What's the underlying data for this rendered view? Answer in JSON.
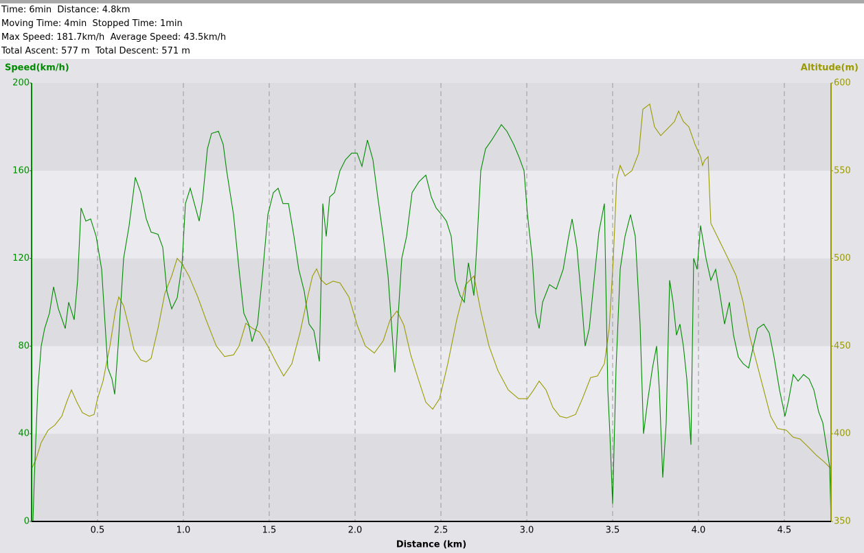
{
  "header": {
    "lines": [
      "Time: 6min  Distance: 4.8km",
      "Moving Time: 4min  Stopped Time: 1min",
      "Max Speed: 181.7km/h  Average Speed: 43.5km/h",
      "Total Ascent: 577 m  Total Descent: 571 m"
    ]
  },
  "chart_data": {
    "type": "line",
    "x_label": "Distance (km)",
    "y_label": "Speed(km/h)",
    "y2_label": "Altitude(m)",
    "xlim": [
      0.116,
      4.772
    ],
    "xticks": [
      0.5,
      {
        "value": 1,
        "label": "1.0"
      },
      1.5,
      {
        "value": 2,
        "label": "2.0"
      },
      2.5,
      {
        "value": 3,
        "label": "3.0"
      },
      3.5,
      {
        "value": 4,
        "label": "4.0"
      },
      4.5
    ],
    "ylim": [
      0,
      200
    ],
    "yticks": [
      0,
      40,
      80,
      120,
      160,
      200
    ],
    "y2lim": [
      350,
      600
    ],
    "y2ticks": [
      350,
      400,
      450,
      500,
      550,
      600
    ],
    "grid": true,
    "series": [
      {
        "name": "Speed",
        "color": "#008a00",
        "axis": "y",
        "x": [
          0.116,
          0.124,
          0.132,
          0.152,
          0.172,
          0.192,
          0.22,
          0.244,
          0.272,
          0.312,
          0.332,
          0.364,
          0.384,
          0.404,
          0.432,
          0.46,
          0.492,
          0.524,
          0.54,
          0.56,
          0.584,
          0.6,
          0.62,
          0.652,
          0.684,
          0.72,
          0.752,
          0.784,
          0.812,
          0.852,
          0.88,
          0.904,
          0.932,
          0.964,
          0.992,
          1.012,
          1.04,
          1.064,
          1.092,
          1.112,
          1.14,
          1.164,
          1.204,
          1.232,
          1.252,
          1.292,
          1.324,
          1.352,
          1.38,
          1.4,
          1.432,
          1.46,
          1.492,
          1.524,
          1.552,
          1.58,
          1.612,
          1.644,
          1.672,
          1.704,
          1.732,
          1.76,
          1.792,
          1.812,
          1.832,
          1.852,
          1.88,
          1.912,
          1.944,
          1.98,
          2.012,
          2.04,
          2.072,
          2.104,
          2.132,
          2.164,
          2.192,
          2.212,
          2.232,
          2.252,
          2.272,
          2.3,
          2.332,
          2.372,
          2.412,
          2.444,
          2.472,
          2.504,
          2.532,
          2.56,
          2.584,
          2.612,
          2.636,
          2.66,
          2.692,
          2.712,
          2.732,
          2.76,
          2.796,
          2.82,
          2.852,
          2.884,
          2.924,
          2.956,
          2.984,
          3.004,
          3.032,
          3.052,
          3.072,
          3.092,
          3.132,
          3.172,
          3.212,
          3.244,
          3.264,
          3.292,
          3.32,
          3.34,
          3.364,
          3.392,
          3.42,
          3.452,
          3.472,
          3.484,
          3.5,
          3.52,
          3.544,
          3.572,
          3.604,
          3.632,
          3.66,
          3.68,
          3.704,
          3.732,
          3.756,
          3.772,
          3.792,
          3.812,
          3.832,
          3.852,
          3.872,
          3.892,
          3.912,
          3.932,
          3.956,
          3.972,
          3.992,
          4.012,
          4.044,
          4.072,
          4.1,
          4.124,
          4.152,
          4.18,
          4.204,
          4.232,
          4.26,
          4.292,
          4.32,
          4.344,
          4.38,
          4.412,
          4.44,
          4.472,
          4.504,
          4.524,
          4.552,
          4.58,
          4.612,
          4.644,
          4.672,
          4.7,
          4.724,
          4.744,
          4.764,
          4.772
        ],
        "values": [
          0,
          0,
          20,
          60,
          80,
          88,
          95,
          107,
          97,
          88,
          100,
          92,
          110,
          143,
          137,
          138,
          130,
          115,
          95,
          70,
          65,
          58,
          80,
          120,
          135,
          157,
          150,
          138,
          132,
          131,
          125,
          105,
          97,
          102,
          117,
          145,
          152,
          145,
          137,
          147,
          170,
          177,
          178,
          172,
          160,
          140,
          115,
          95,
          90,
          82,
          90,
          112,
          140,
          150,
          152,
          145,
          145,
          130,
          115,
          105,
          90,
          87,
          73,
          145,
          130,
          148,
          150,
          160,
          165,
          168,
          168,
          162,
          174,
          165,
          148,
          130,
          112,
          90,
          68,
          95,
          120,
          130,
          150,
          155,
          158,
          148,
          143,
          140,
          137,
          130,
          110,
          103,
          100,
          118,
          103,
          130,
          160,
          170,
          174,
          177,
          181,
          178,
          172,
          166,
          160,
          140,
          120,
          95,
          88,
          100,
          108,
          106,
          115,
          130,
          138,
          125,
          100,
          80,
          88,
          110,
          132,
          145,
          60,
          40,
          8,
          70,
          115,
          130,
          140,
          130,
          90,
          40,
          55,
          70,
          80,
          60,
          20,
          45,
          110,
          100,
          85,
          90,
          80,
          65,
          35,
          120,
          115,
          135,
          120,
          110,
          115,
          104,
          90,
          100,
          85,
          75,
          72,
          70,
          80,
          88,
          90,
          86,
          75,
          60,
          48,
          55,
          67,
          64,
          67,
          65,
          60,
          50,
          45,
          35,
          25,
          0
        ]
      },
      {
        "name": "Altitude",
        "color": "#9a9a00",
        "axis": "y2",
        "x": [
          0.116,
          0.14,
          0.172,
          0.212,
          0.252,
          0.292,
          0.32,
          0.348,
          0.38,
          0.412,
          0.452,
          0.48,
          0.5,
          0.532,
          0.572,
          0.604,
          0.624,
          0.652,
          0.68,
          0.712,
          0.752,
          0.784,
          0.812,
          0.852,
          0.892,
          0.932,
          0.964,
          0.992,
          1.032,
          1.084,
          1.132,
          1.192,
          1.24,
          1.292,
          1.324,
          1.364,
          1.404,
          1.444,
          1.492,
          1.544,
          1.584,
          1.632,
          1.68,
          1.724,
          1.752,
          1.776,
          1.8,
          1.832,
          1.872,
          1.912,
          1.964,
          2.012,
          2.06,
          2.112,
          2.164,
          2.204,
          2.244,
          2.284,
          2.324,
          2.372,
          2.412,
          2.452,
          2.492,
          2.54,
          2.592,
          2.644,
          2.692,
          2.732,
          2.78,
          2.832,
          2.892,
          2.952,
          3.004,
          3.04,
          3.072,
          3.112,
          3.152,
          3.192,
          3.232,
          3.284,
          3.324,
          3.372,
          3.412,
          3.452,
          3.48,
          3.504,
          3.524,
          3.544,
          3.572,
          3.612,
          3.652,
          3.676,
          3.716,
          3.744,
          3.78,
          3.82,
          3.86,
          3.884,
          3.912,
          3.944,
          3.98,
          4.012,
          4.024,
          4.036,
          4.056,
          4.072,
          4.112,
          4.172,
          4.22,
          4.26,
          4.3,
          4.34,
          4.38,
          4.42,
          4.46,
          4.512,
          4.552,
          4.592,
          4.644,
          4.684,
          4.732,
          4.772
        ],
        "values": [
          380,
          385,
          395,
          402,
          405,
          410,
          418,
          425,
          418,
          412,
          410,
          411,
          420,
          430,
          450,
          470,
          478,
          473,
          462,
          448,
          442,
          441,
          443,
          460,
          480,
          490,
          500,
          497,
          490,
          478,
          465,
          450,
          444,
          445,
          450,
          463,
          460,
          458,
          450,
          440,
          433,
          440,
          458,
          478,
          490,
          494,
          488,
          485,
          487,
          486,
          478,
          462,
          450,
          446,
          453,
          465,
          470,
          462,
          445,
          430,
          418,
          414,
          420,
          440,
          465,
          485,
          490,
          470,
          450,
          436,
          425,
          420,
          420,
          425,
          430,
          425,
          415,
          410,
          409,
          411,
          420,
          432,
          433,
          440,
          460,
          500,
          545,
          553,
          547,
          550,
          560,
          585,
          588,
          575,
          570,
          574,
          578,
          584,
          578,
          575,
          565,
          558,
          553,
          556,
          558,
          520,
          512,
          500,
          490,
          475,
          455,
          440,
          425,
          410,
          403,
          402,
          398,
          397,
          392,
          388,
          384,
          380
        ]
      }
    ]
  }
}
